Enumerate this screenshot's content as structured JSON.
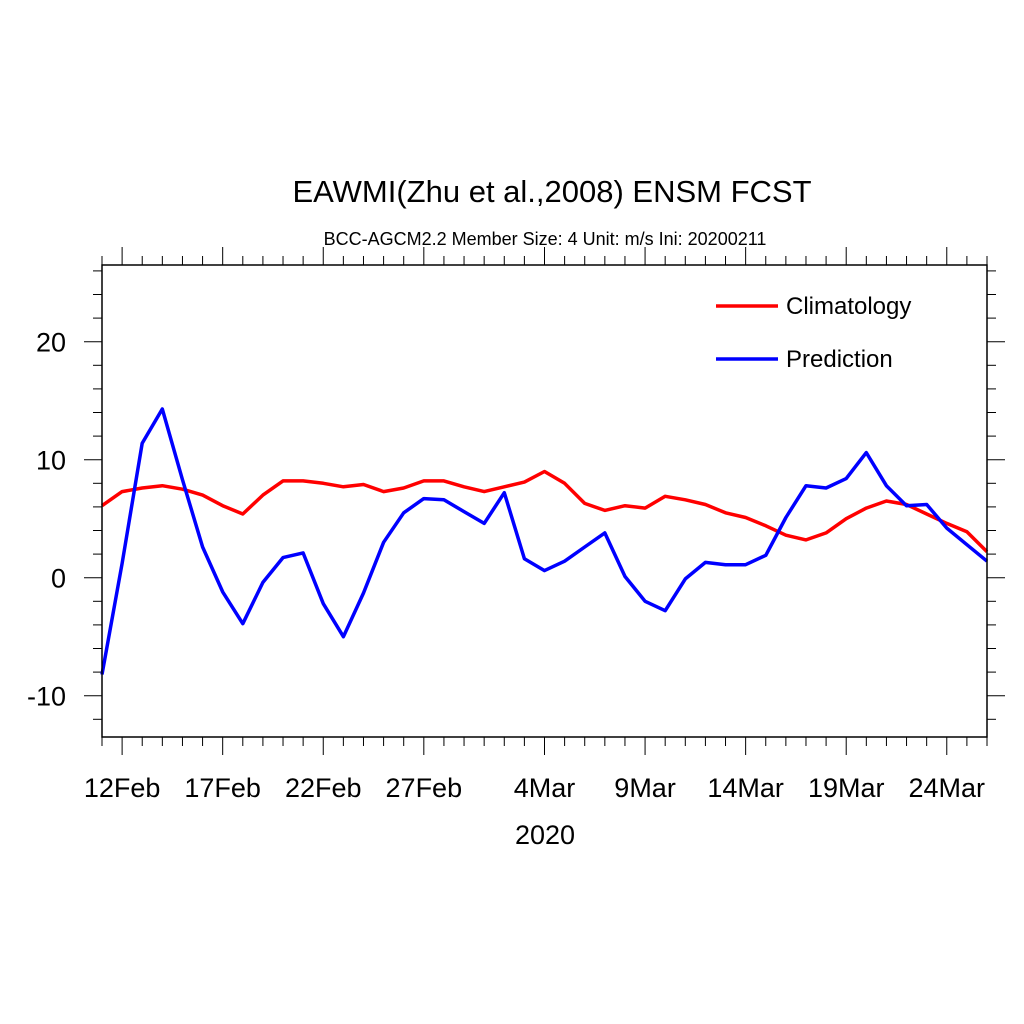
{
  "chart_data": {
    "type": "line",
    "title": "EAWMI(Zhu et al.,2008) ENSM FCST",
    "subtitle": "BCC-AGCM2.2   Member Size: 4   Unit: m/s   Ini: 20200211",
    "xlabel": "2020",
    "ylabel": "",
    "x_start_day": 11,
    "x_end_day": 55,
    "xlim": [
      11,
      55
    ],
    "ylim": [
      -13.5,
      26.5
    ],
    "yticks": [
      {
        "value": -10,
        "label": "-10"
      },
      {
        "value": 0,
        "label": "0"
      },
      {
        "value": 10,
        "label": "10"
      },
      {
        "value": 20,
        "label": "20"
      }
    ],
    "xticks": [
      {
        "value": 12,
        "label": "12Feb"
      },
      {
        "value": 17,
        "label": "17Feb"
      },
      {
        "value": 22,
        "label": "22Feb"
      },
      {
        "value": 27,
        "label": "27Feb"
      },
      {
        "value": 33,
        "label": "4Mar"
      },
      {
        "value": 38,
        "label": "9Mar"
      },
      {
        "value": 43,
        "label": "14Mar"
      },
      {
        "value": 48,
        "label": "19Mar"
      },
      {
        "value": 53,
        "label": "24Mar"
      }
    ],
    "legend_position": "top-right",
    "series": [
      {
        "name": "Climatology",
        "color": "#ff0000",
        "values": [
          6.1,
          7.3,
          7.6,
          7.8,
          7.5,
          7.0,
          6.1,
          5.4,
          7.0,
          8.2,
          8.2,
          8.0,
          7.7,
          7.9,
          7.3,
          7.6,
          8.2,
          8.2,
          7.7,
          7.3,
          7.7,
          8.1,
          9.0,
          8.0,
          6.3,
          5.7,
          6.1,
          5.9,
          6.9,
          6.6,
          6.2,
          5.5,
          5.1,
          4.4,
          3.6,
          3.2,
          3.8,
          5.0,
          5.9,
          6.5,
          6.2,
          5.4,
          4.6,
          3.9,
          2.2
        ]
      },
      {
        "name": "Prediction",
        "color": "#0000ff",
        "values": [
          -8.2,
          1.2,
          11.4,
          14.3,
          8.3,
          2.6,
          -1.2,
          -3.9,
          -0.4,
          1.7,
          2.1,
          -2.2,
          -5.0,
          -1.3,
          3.0,
          5.5,
          6.7,
          6.6,
          5.6,
          4.6,
          7.2,
          1.6,
          0.6,
          1.4,
          2.6,
          3.8,
          0.1,
          -2.0,
          -2.8,
          -0.1,
          1.3,
          1.1,
          1.1,
          1.9,
          5.1,
          7.8,
          7.6,
          8.4,
          10.6,
          7.8,
          6.1,
          6.2,
          4.2,
          2.8,
          1.4
        ]
      }
    ]
  }
}
